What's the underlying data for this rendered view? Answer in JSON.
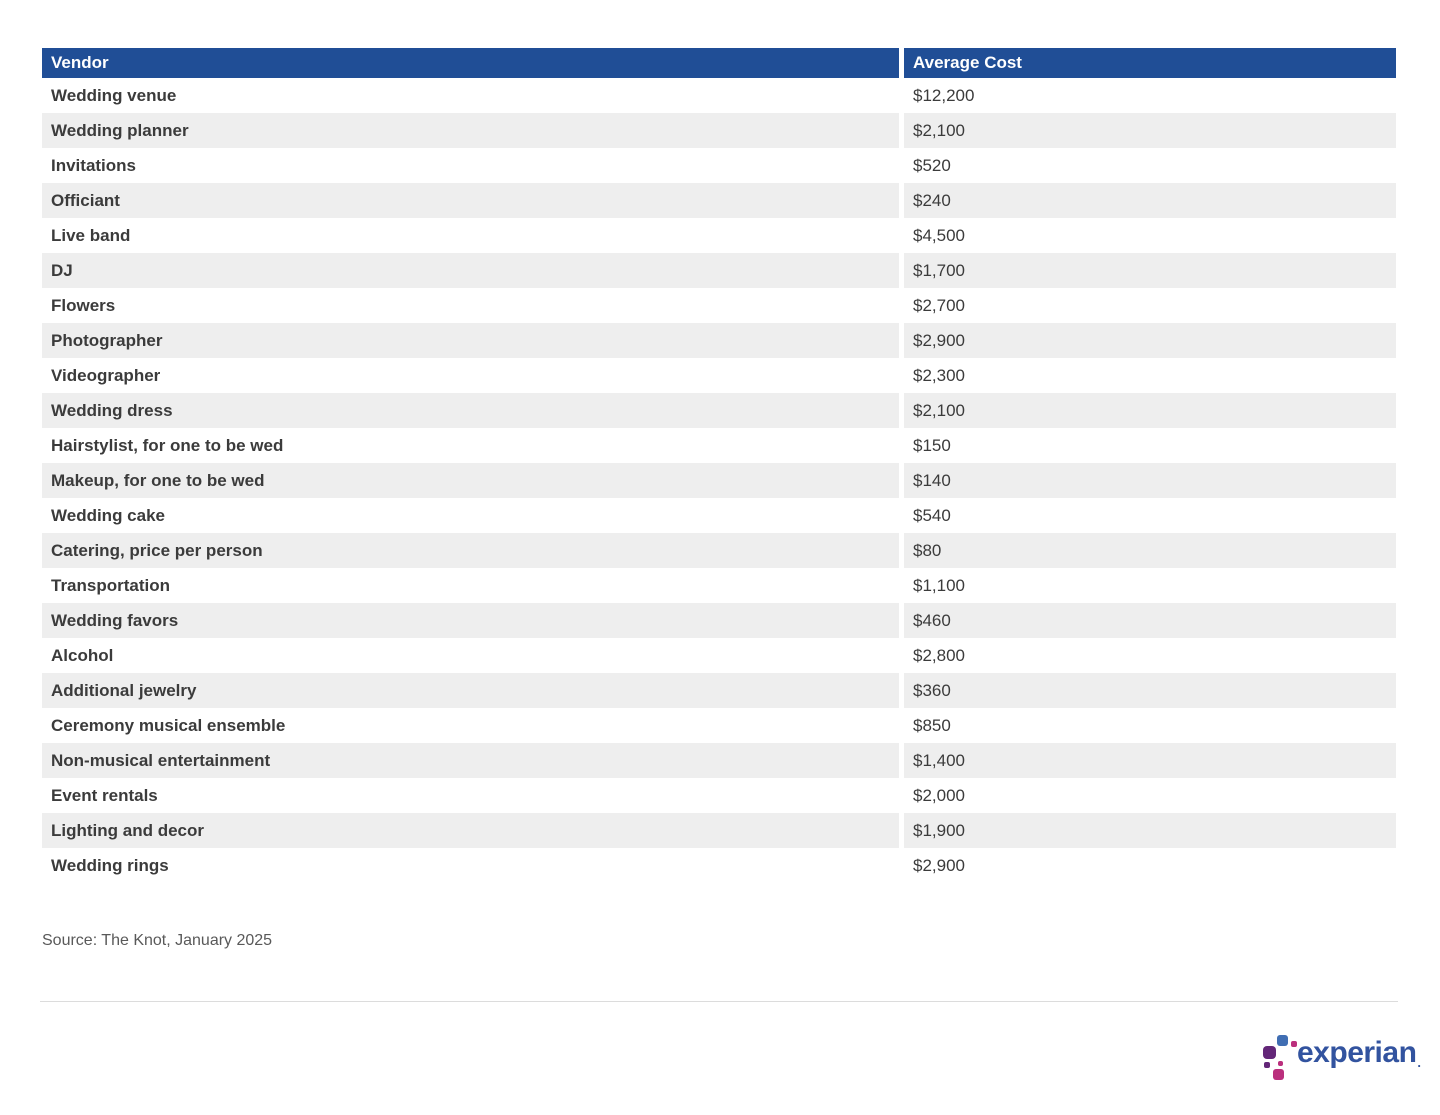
{
  "table": {
    "headers": {
      "vendor": "Vendor",
      "cost": "Average Cost"
    },
    "rows": [
      {
        "vendor": "Wedding venue",
        "cost": "$12,200"
      },
      {
        "vendor": "Wedding planner",
        "cost": "$2,100"
      },
      {
        "vendor": "Invitations",
        "cost": "$520"
      },
      {
        "vendor": "Officiant",
        "cost": "$240"
      },
      {
        "vendor": "Live band",
        "cost": "$4,500"
      },
      {
        "vendor": "DJ",
        "cost": "$1,700"
      },
      {
        "vendor": "Flowers",
        "cost": "$2,700"
      },
      {
        "vendor": "Photographer",
        "cost": "$2,900"
      },
      {
        "vendor": "Videographer",
        "cost": "$2,300"
      },
      {
        "vendor": "Wedding dress",
        "cost": "$2,100"
      },
      {
        "vendor": "Hairstylist, for one to be wed",
        "cost": "$150"
      },
      {
        "vendor": "Makeup, for one to be wed",
        "cost": "$140"
      },
      {
        "vendor": "Wedding cake",
        "cost": "$540"
      },
      {
        "vendor": "Catering, price per person",
        "cost": "$80"
      },
      {
        "vendor": "Transportation",
        "cost": "$1,100"
      },
      {
        "vendor": "Wedding favors",
        "cost": "$460"
      },
      {
        "vendor": "Alcohol",
        "cost": "$2,800"
      },
      {
        "vendor": "Additional jewelry",
        "cost": "$360"
      },
      {
        "vendor": "Ceremony musical ensemble",
        "cost": "$850"
      },
      {
        "vendor": "Non-musical entertainment",
        "cost": "$1,400"
      },
      {
        "vendor": "Event rentals",
        "cost": "$2,000"
      },
      {
        "vendor": "Lighting and decor",
        "cost": "$1,900"
      },
      {
        "vendor": "Wedding rings",
        "cost": "$2,900"
      }
    ]
  },
  "source": "Source: The Knot, January 2025",
  "logo": {
    "wordmark": "experian",
    "trademark": "."
  },
  "colors": {
    "header_bg": "#204e96",
    "header_text": "#ffffff",
    "row_stripe": "#eeeeee",
    "body_text": "#3b3b3b",
    "source_text": "#595959",
    "divider": "#dcdcdc",
    "logo_blue": "#32539f",
    "logo_dot_lightblue": "#406eb3",
    "logo_dot_purple": "#632678",
    "logo_dot_magenta": "#ba2f7d"
  },
  "chart_data": {
    "type": "table",
    "title": "",
    "columns": [
      "Vendor",
      "Average Cost"
    ],
    "rows": [
      [
        "Wedding venue",
        12200
      ],
      [
        "Wedding planner",
        2100
      ],
      [
        "Invitations",
        520
      ],
      [
        "Officiant",
        240
      ],
      [
        "Live band",
        4500
      ],
      [
        "DJ",
        1700
      ],
      [
        "Flowers",
        2700
      ],
      [
        "Photographer",
        2900
      ],
      [
        "Videographer",
        2300
      ],
      [
        "Wedding dress",
        2100
      ],
      [
        "Hairstylist, for one to be wed",
        150
      ],
      [
        "Makeup, for one to be wed",
        140
      ],
      [
        "Wedding cake",
        540
      ],
      [
        "Catering, price per person",
        80
      ],
      [
        "Transportation",
        1100
      ],
      [
        "Wedding favors",
        460
      ],
      [
        "Alcohol",
        2800
      ],
      [
        "Additional jewelry",
        360
      ],
      [
        "Ceremony musical ensemble",
        850
      ],
      [
        "Non-musical entertainment",
        1400
      ],
      [
        "Event rentals",
        2000
      ],
      [
        "Lighting and decor",
        1900
      ],
      [
        "Wedding rings",
        2900
      ]
    ],
    "source": "Source: The Knot, January 2025",
    "layout": {
      "striped": true,
      "header_position": "top",
      "value_format": "$#,###"
    }
  }
}
